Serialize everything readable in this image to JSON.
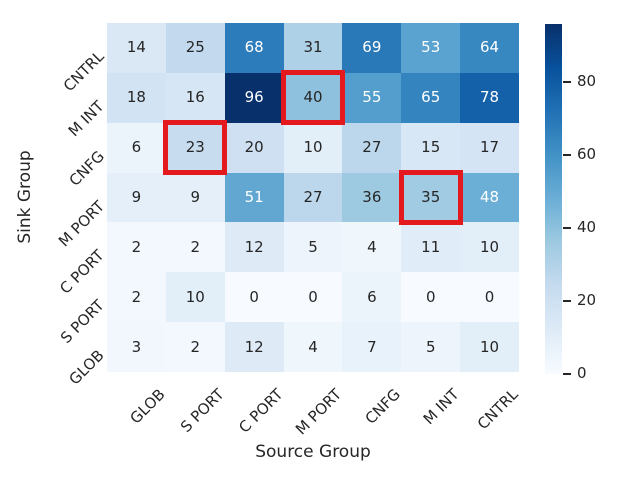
{
  "chart_data": {
    "type": "heatmap",
    "xlabel": "Source Group",
    "ylabel": "Sink Group",
    "x_categories": [
      "GLOB",
      "S PORT",
      "C PORT",
      "M PORT",
      "CNFG",
      "M INT",
      "CNTRL"
    ],
    "y_categories": [
      "CNTRL",
      "M INT",
      "CNFG",
      "M PORT",
      "C PORT",
      "S PORT",
      "GLOB"
    ],
    "values": [
      [
        14,
        25,
        68,
        31,
        69,
        53,
        64
      ],
      [
        18,
        16,
        96,
        40,
        55,
        65,
        78
      ],
      [
        6,
        23,
        20,
        10,
        27,
        15,
        17
      ],
      [
        9,
        9,
        51,
        27,
        36,
        35,
        48
      ],
      [
        2,
        2,
        12,
        5,
        4,
        11,
        10
      ],
      [
        2,
        10,
        0,
        0,
        6,
        0,
        0
      ],
      [
        3,
        2,
        12,
        4,
        7,
        5,
        10
      ]
    ],
    "vmin": 0,
    "vmax": 96,
    "colormap_name": "Blues",
    "colormap_stops": [
      [
        247,
        251,
        255
      ],
      [
        222,
        235,
        247
      ],
      [
        198,
        219,
        239
      ],
      [
        158,
        202,
        225
      ],
      [
        107,
        174,
        214
      ],
      [
        66,
        146,
        198
      ],
      [
        33,
        113,
        181
      ],
      [
        8,
        81,
        156
      ],
      [
        8,
        48,
        107
      ]
    ],
    "colorbar_ticks": [
      0,
      20,
      40,
      60,
      80
    ],
    "highlighted_cells": [
      {
        "row_label": "M INT",
        "col_label": "M PORT",
        "row": 1,
        "col": 3,
        "value": 40
      },
      {
        "row_label": "CNFG",
        "col_label": "S PORT",
        "row": 2,
        "col": 1,
        "value": 23
      },
      {
        "row_label": "M PORT",
        "col_label": "M INT",
        "row": 3,
        "col": 5,
        "value": 35
      }
    ],
    "highlight_color": "#e3191e",
    "annotation_dark_text": "#262626",
    "annotation_light_text": "#ffffff",
    "legend_position": "right-colorbar",
    "grid_lines": false
  }
}
